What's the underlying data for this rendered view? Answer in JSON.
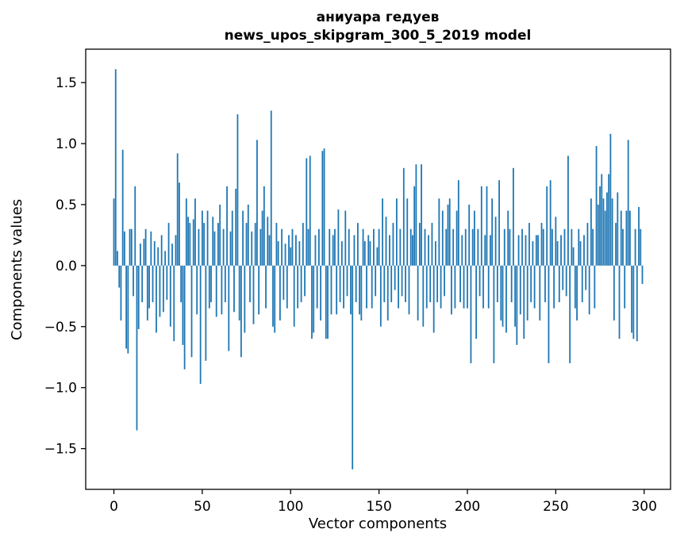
{
  "figure": {
    "background": "#ffffff",
    "bar_color": "#1f77b4"
  },
  "chart_data": {
    "type": "bar",
    "title_line1": "аниуара гедуев",
    "title_line2": "news_upos_skipgram_300_5_2019 model",
    "xlabel": "Vector components",
    "ylabel": "Components values",
    "xlim": [
      -15.95,
      314.95
    ],
    "ylim": [
      -1.834,
      1.774
    ],
    "grid": false,
    "legend": null,
    "x_ticks": [
      {
        "v": 0,
        "label": "0"
      },
      {
        "v": 50,
        "label": "50"
      },
      {
        "v": 100,
        "label": "100"
      },
      {
        "v": 150,
        "label": "150"
      },
      {
        "v": 200,
        "label": "200"
      },
      {
        "v": 250,
        "label": "250"
      },
      {
        "v": 300,
        "label": "300"
      }
    ],
    "y_ticks": [
      {
        "v": -1.5,
        "label": "−1.5"
      },
      {
        "v": -1.0,
        "label": "−1.0"
      },
      {
        "v": -0.5,
        "label": "−0.5"
      },
      {
        "v": 0.0,
        "label": "0.0"
      },
      {
        "v": 0.5,
        "label": "0.5"
      },
      {
        "v": 1.0,
        "label": "1.0"
      },
      {
        "v": 1.5,
        "label": "1.5"
      }
    ],
    "values": [
      0.55,
      1.61,
      0.12,
      -0.18,
      -0.45,
      0.95,
      0.28,
      -0.68,
      -0.72,
      0.3,
      0.3,
      -0.25,
      0.65,
      -1.35,
      -0.52,
      0.18,
      -0.3,
      0.22,
      0.3,
      -0.45,
      -0.35,
      0.28,
      -0.3,
      0.2,
      -0.55,
      0.15,
      -0.42,
      0.25,
      -0.38,
      0.12,
      -0.28,
      0.35,
      -0.5,
      0.18,
      -0.62,
      0.25,
      0.92,
      0.68,
      -0.3,
      -0.65,
      -0.85,
      0.55,
      0.4,
      0.35,
      -0.75,
      0.38,
      0.55,
      -0.4,
      0.3,
      -0.97,
      0.45,
      0.35,
      -0.78,
      0.45,
      -0.35,
      -0.3,
      0.4,
      0.28,
      -0.42,
      0.35,
      0.5,
      -0.4,
      0.3,
      -0.3,
      0.65,
      -0.7,
      0.28,
      0.45,
      -0.38,
      0.63,
      1.24,
      -0.45,
      -0.75,
      0.45,
      -0.55,
      0.35,
      0.5,
      -0.3,
      0.28,
      -0.48,
      0.35,
      1.03,
      -0.4,
      0.3,
      0.45,
      0.65,
      -0.35,
      0.4,
      0.25,
      1.27,
      -0.5,
      -0.55,
      0.35,
      0.2,
      -0.45,
      0.3,
      -0.28,
      0.18,
      -0.35,
      0.25,
      0.15,
      0.3,
      -0.5,
      0.25,
      -0.35,
      0.2,
      -0.3,
      0.35,
      -0.25,
      0.88,
      0.3,
      0.9,
      -0.6,
      -0.55,
      0.25,
      -0.35,
      0.3,
      -0.45,
      0.94,
      0.96,
      -0.6,
      -0.6,
      0.3,
      -0.4,
      0.25,
      0.3,
      -0.4,
      0.46,
      -0.3,
      0.2,
      -0.35,
      0.45,
      -0.25,
      0.3,
      -0.4,
      -1.67,
      0.25,
      -0.3,
      0.35,
      -0.4,
      -0.45,
      0.3,
      0.2,
      -0.35,
      0.25,
      0.2,
      -0.35,
      0.3,
      -0.25,
      0.15,
      0.3,
      -0.5,
      0.55,
      -0.3,
      0.4,
      -0.45,
      0.25,
      -0.3,
      0.35,
      -0.2,
      0.55,
      -0.35,
      0.3,
      -0.25,
      0.8,
      -0.3,
      0.55,
      -0.4,
      0.3,
      0.25,
      0.65,
      0.83,
      -0.45,
      0.35,
      0.83,
      -0.5,
      0.3,
      -0.35,
      0.25,
      -0.3,
      0.35,
      -0.55,
      0.2,
      -0.3,
      0.55,
      -0.35,
      0.45,
      -0.25,
      0.3,
      0.5,
      0.55,
      -0.4,
      0.3,
      -0.35,
      0.45,
      0.7,
      -0.3,
      0.25,
      -0.35,
      0.3,
      -0.35,
      0.5,
      -0.8,
      0.3,
      0.45,
      -0.6,
      0.3,
      -0.25,
      0.65,
      -0.35,
      0.25,
      0.65,
      -0.35,
      0.25,
      0.55,
      -0.8,
      0.4,
      -0.3,
      0.7,
      -0.45,
      -0.5,
      0.3,
      -0.55,
      0.45,
      0.3,
      -0.3,
      0.8,
      -0.5,
      -0.65,
      0.25,
      -0.4,
      0.3,
      -0.6,
      0.25,
      -0.45,
      0.35,
      -0.3,
      0.2,
      -0.35,
      0.25,
      0.25,
      -0.45,
      0.35,
      0.3,
      -0.3,
      0.65,
      -0.8,
      0.7,
      0.3,
      -0.35,
      0.4,
      0.2,
      -0.3,
      0.25,
      -0.2,
      0.3,
      -0.25,
      0.9,
      -0.8,
      0.3,
      0.15,
      -0.35,
      -0.45,
      0.3,
      0.2,
      -0.3,
      0.25,
      -0.2,
      0.35,
      -0.4,
      0.55,
      0.3,
      -0.35,
      0.98,
      0.5,
      0.65,
      0.75,
      0.55,
      0.45,
      0.6,
      0.75,
      1.08,
      0.55,
      -0.45,
      0.35,
      0.6,
      -0.6,
      0.45,
      0.3,
      -0.35,
      0.45,
      1.03,
      0.45,
      -0.55,
      -0.6,
      0.3,
      -0.62,
      0.48,
      0.3,
      -0.15
    ]
  }
}
